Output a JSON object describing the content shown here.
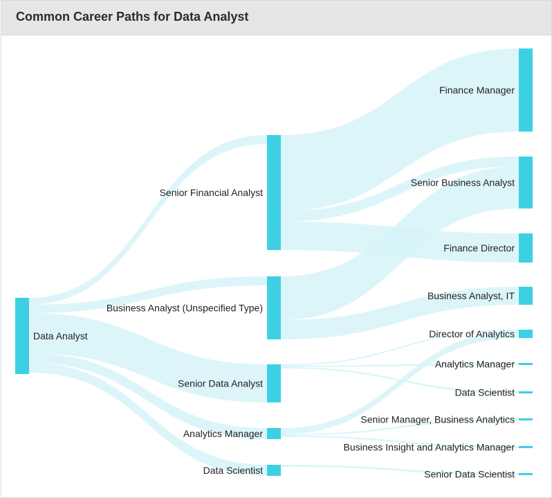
{
  "header": {
    "title": "Common Career Paths for Data Analyst"
  },
  "colors": {
    "node": "#3dd0e4",
    "link": "#d6f3f8"
  },
  "chart_data": {
    "type": "sankey",
    "nodes": {
      "data_analyst": "Data Analyst",
      "senior_financial_analyst": "Senior Financial Analyst",
      "business_analyst_unspecified": "Business Analyst (Unspecified Type)",
      "senior_data_analyst": "Senior Data Analyst",
      "analytics_manager_l1": "Analytics Manager",
      "data_scientist_l1": "Data Scientist",
      "finance_manager": "Finance Manager",
      "senior_business_analyst": "Senior Business Analyst",
      "finance_director": "Finance Director",
      "business_analyst_it": "Business Analyst, IT",
      "director_of_analytics": "Director of Analytics",
      "analytics_manager_l2": "Analytics Manager",
      "data_scientist_l2": "Data Scientist",
      "senior_manager_business_analytics": "Senior Manager, Business Analytics",
      "business_insight_analytics_manager": "Business Insight and Analytics Manager",
      "senior_data_scientist": "Senior Data Scientist"
    }
  }
}
